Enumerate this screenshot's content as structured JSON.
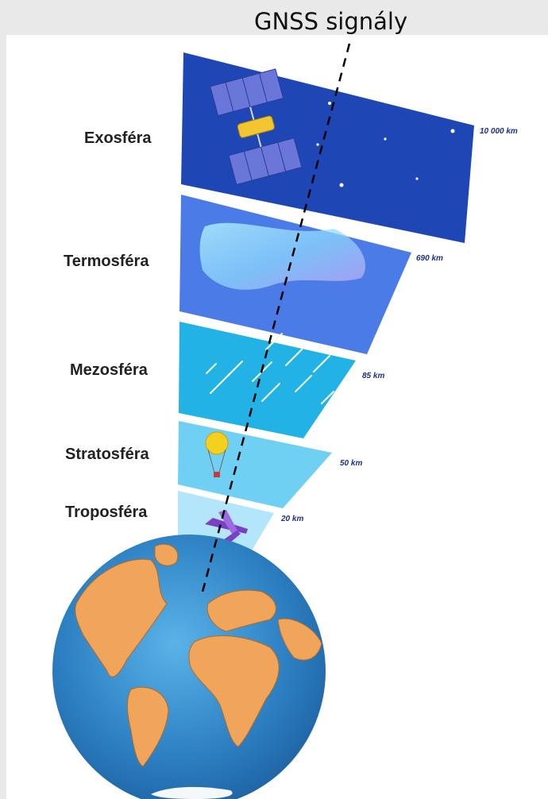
{
  "signal": {
    "title": "GNSS signály"
  },
  "layers": [
    {
      "name": "Exosféra",
      "altitude": "10 000 km",
      "color": "#1e47b5"
    },
    {
      "name": "Termosféra",
      "altitude": "690 km",
      "color": "#4b7be6"
    },
    {
      "name": "Mezosféra",
      "altitude": "85 km",
      "color": "#22b2e6"
    },
    {
      "name": "Stratosféra",
      "altitude": "50 km",
      "color": "#6fd0f4"
    },
    {
      "name": "Troposféra",
      "altitude": "20 km",
      "color": "#b3e6fb"
    }
  ],
  "colors": {
    "ocean": "#2c7fc2",
    "land": "#f0a55a",
    "star": "#ffffff",
    "signal_line": "#000000"
  }
}
